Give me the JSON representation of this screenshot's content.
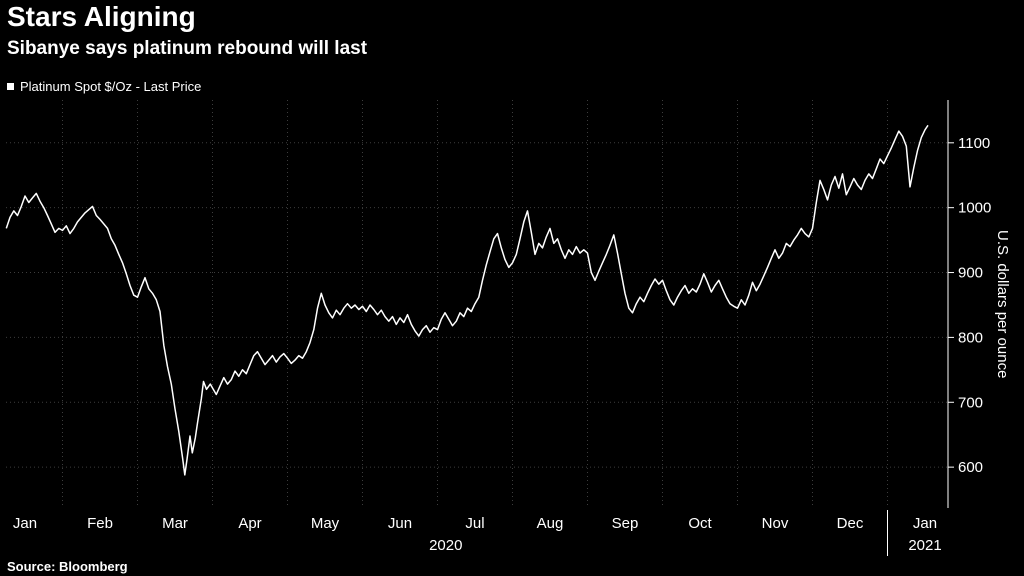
{
  "header": {
    "title": "Stars Aligning",
    "subtitle": "Sibanye says platinum rebound will last"
  },
  "legend": {
    "marker": "white-square",
    "label": "Platinum Spot  $/Oz - Last Price"
  },
  "source": "Source: Bloomberg",
  "colors": {
    "background": "#000000",
    "line": "#ffffff",
    "grid": "#3d3d3d",
    "text": "#ffffff"
  },
  "chart_data": {
    "type": "line",
    "title": "Stars Aligning",
    "subtitle": "Sibanye says platinum rebound will last",
    "ylabel": "U.S. dollars per ounce",
    "ylim": [
      537,
      1166
    ],
    "yticks": [
      600,
      700,
      800,
      900,
      1000,
      1100
    ],
    "grid": "dotted",
    "legend_position": "top-left",
    "x_axis": {
      "unit": "months since 2020-01-01",
      "months": [
        "Jan",
        "Feb",
        "Mar",
        "Apr",
        "May",
        "Jun",
        "Jul",
        "Aug",
        "Sep",
        "Oct",
        "Nov",
        "Dec",
        "Jan"
      ],
      "year_labels": [
        {
          "text": "2020",
          "month": 6.11
        },
        {
          "text": "2021",
          "month": 12.5
        }
      ]
    },
    "series": [
      {
        "name": "Platinum Spot $/Oz - Last Price",
        "points": [
          [
            0.25,
            968
          ],
          [
            0.3,
            985
          ],
          [
            0.35,
            995
          ],
          [
            0.4,
            988
          ],
          [
            0.45,
            1002
          ],
          [
            0.5,
            1018
          ],
          [
            0.55,
            1008
          ],
          [
            0.6,
            1015
          ],
          [
            0.65,
            1022
          ],
          [
            0.7,
            1010
          ],
          [
            0.75,
            1000
          ],
          [
            0.8,
            988
          ],
          [
            0.85,
            975
          ],
          [
            0.9,
            962
          ],
          [
            0.95,
            968
          ],
          [
            1.0,
            965
          ],
          [
            1.05,
            972
          ],
          [
            1.1,
            960
          ],
          [
            1.15,
            968
          ],
          [
            1.2,
            978
          ],
          [
            1.3,
            992
          ],
          [
            1.4,
            1002
          ],
          [
            1.45,
            988
          ],
          [
            1.5,
            982
          ],
          [
            1.6,
            968
          ],
          [
            1.65,
            952
          ],
          [
            1.7,
            942
          ],
          [
            1.75,
            928
          ],
          [
            1.8,
            915
          ],
          [
            1.85,
            898
          ],
          [
            1.9,
            880
          ],
          [
            1.95,
            865
          ],
          [
            2.0,
            862
          ],
          [
            2.05,
            878
          ],
          [
            2.1,
            892
          ],
          [
            2.15,
            875
          ],
          [
            2.2,
            868
          ],
          [
            2.25,
            858
          ],
          [
            2.3,
            840
          ],
          [
            2.35,
            788
          ],
          [
            2.4,
            755
          ],
          [
            2.45,
            728
          ],
          [
            2.5,
            690
          ],
          [
            2.55,
            655
          ],
          [
            2.6,
            615
          ],
          [
            2.63,
            588
          ],
          [
            2.66,
            612
          ],
          [
            2.7,
            648
          ],
          [
            2.73,
            622
          ],
          [
            2.77,
            645
          ],
          [
            2.8,
            668
          ],
          [
            2.85,
            705
          ],
          [
            2.88,
            732
          ],
          [
            2.92,
            720
          ],
          [
            2.97,
            728
          ],
          [
            3.0,
            722
          ],
          [
            3.05,
            712
          ],
          [
            3.1,
            725
          ],
          [
            3.15,
            738
          ],
          [
            3.2,
            728
          ],
          [
            3.25,
            735
          ],
          [
            3.3,
            748
          ],
          [
            3.35,
            740
          ],
          [
            3.4,
            750
          ],
          [
            3.45,
            744
          ],
          [
            3.5,
            758
          ],
          [
            3.55,
            772
          ],
          [
            3.6,
            778
          ],
          [
            3.65,
            768
          ],
          [
            3.7,
            758
          ],
          [
            3.75,
            765
          ],
          [
            3.8,
            772
          ],
          [
            3.85,
            762
          ],
          [
            3.9,
            770
          ],
          [
            3.95,
            775
          ],
          [
            4.0,
            768
          ],
          [
            4.05,
            760
          ],
          [
            4.1,
            765
          ],
          [
            4.15,
            772
          ],
          [
            4.2,
            768
          ],
          [
            4.25,
            778
          ],
          [
            4.3,
            792
          ],
          [
            4.35,
            812
          ],
          [
            4.4,
            845
          ],
          [
            4.45,
            868
          ],
          [
            4.5,
            850
          ],
          [
            4.55,
            838
          ],
          [
            4.6,
            830
          ],
          [
            4.65,
            842
          ],
          [
            4.7,
            835
          ],
          [
            4.75,
            845
          ],
          [
            4.8,
            852
          ],
          [
            4.85,
            845
          ],
          [
            4.9,
            850
          ],
          [
            4.95,
            843
          ],
          [
            5.0,
            848
          ],
          [
            5.05,
            840
          ],
          [
            5.1,
            850
          ],
          [
            5.15,
            843
          ],
          [
            5.2,
            835
          ],
          [
            5.25,
            842
          ],
          [
            5.3,
            832
          ],
          [
            5.35,
            825
          ],
          [
            5.4,
            832
          ],
          [
            5.45,
            820
          ],
          [
            5.5,
            830
          ],
          [
            5.55,
            823
          ],
          [
            5.6,
            835
          ],
          [
            5.65,
            820
          ],
          [
            5.7,
            810
          ],
          [
            5.75,
            802
          ],
          [
            5.8,
            812
          ],
          [
            5.85,
            818
          ],
          [
            5.9,
            808
          ],
          [
            5.95,
            815
          ],
          [
            6.0,
            812
          ],
          [
            6.05,
            828
          ],
          [
            6.1,
            838
          ],
          [
            6.15,
            828
          ],
          [
            6.2,
            818
          ],
          [
            6.25,
            825
          ],
          [
            6.3,
            838
          ],
          [
            6.35,
            832
          ],
          [
            6.4,
            845
          ],
          [
            6.45,
            840
          ],
          [
            6.5,
            852
          ],
          [
            6.55,
            862
          ],
          [
            6.6,
            888
          ],
          [
            6.65,
            912
          ],
          [
            6.7,
            932
          ],
          [
            6.75,
            952
          ],
          [
            6.8,
            960
          ],
          [
            6.85,
            938
          ],
          [
            6.9,
            920
          ],
          [
            6.95,
            908
          ],
          [
            7.0,
            915
          ],
          [
            7.05,
            928
          ],
          [
            7.1,
            952
          ],
          [
            7.15,
            978
          ],
          [
            7.2,
            995
          ],
          [
            7.25,
            962
          ],
          [
            7.3,
            928
          ],
          [
            7.35,
            945
          ],
          [
            7.4,
            938
          ],
          [
            7.45,
            955
          ],
          [
            7.5,
            968
          ],
          [
            7.55,
            945
          ],
          [
            7.6,
            952
          ],
          [
            7.65,
            935
          ],
          [
            7.7,
            922
          ],
          [
            7.75,
            935
          ],
          [
            7.8,
            928
          ],
          [
            7.85,
            940
          ],
          [
            7.9,
            930
          ],
          [
            7.95,
            935
          ],
          [
            8.0,
            930
          ],
          [
            8.05,
            900
          ],
          [
            8.1,
            888
          ],
          [
            8.15,
            902
          ],
          [
            8.2,
            915
          ],
          [
            8.25,
            928
          ],
          [
            8.3,
            942
          ],
          [
            8.35,
            958
          ],
          [
            8.4,
            930
          ],
          [
            8.45,
            898
          ],
          [
            8.5,
            868
          ],
          [
            8.55,
            845
          ],
          [
            8.6,
            838
          ],
          [
            8.65,
            852
          ],
          [
            8.7,
            862
          ],
          [
            8.75,
            855
          ],
          [
            8.8,
            868
          ],
          [
            8.85,
            880
          ],
          [
            8.9,
            890
          ],
          [
            8.95,
            882
          ],
          [
            9.0,
            888
          ],
          [
            9.05,
            872
          ],
          [
            9.1,
            858
          ],
          [
            9.15,
            850
          ],
          [
            9.2,
            862
          ],
          [
            9.25,
            872
          ],
          [
            9.3,
            880
          ],
          [
            9.35,
            868
          ],
          [
            9.4,
            875
          ],
          [
            9.45,
            870
          ],
          [
            9.5,
            882
          ],
          [
            9.55,
            898
          ],
          [
            9.6,
            885
          ],
          [
            9.65,
            870
          ],
          [
            9.7,
            880
          ],
          [
            9.75,
            888
          ],
          [
            9.8,
            875
          ],
          [
            9.85,
            862
          ],
          [
            9.9,
            852
          ],
          [
            9.95,
            848
          ],
          [
            10.0,
            845
          ],
          [
            10.05,
            858
          ],
          [
            10.1,
            850
          ],
          [
            10.15,
            865
          ],
          [
            10.2,
            885
          ],
          [
            10.25,
            872
          ],
          [
            10.3,
            882
          ],
          [
            10.35,
            895
          ],
          [
            10.4,
            908
          ],
          [
            10.45,
            922
          ],
          [
            10.5,
            935
          ],
          [
            10.55,
            922
          ],
          [
            10.6,
            930
          ],
          [
            10.65,
            945
          ],
          [
            10.7,
            940
          ],
          [
            10.75,
            950
          ],
          [
            10.8,
            958
          ],
          [
            10.85,
            968
          ],
          [
            10.9,
            960
          ],
          [
            10.95,
            955
          ],
          [
            11.0,
            968
          ],
          [
            11.05,
            1008
          ],
          [
            11.1,
            1042
          ],
          [
            11.15,
            1028
          ],
          [
            11.2,
            1012
          ],
          [
            11.25,
            1035
          ],
          [
            11.3,
            1048
          ],
          [
            11.35,
            1030
          ],
          [
            11.4,
            1052
          ],
          [
            11.45,
            1020
          ],
          [
            11.5,
            1032
          ],
          [
            11.55,
            1045
          ],
          [
            11.6,
            1035
          ],
          [
            11.65,
            1028
          ],
          [
            11.7,
            1042
          ],
          [
            11.75,
            1052
          ],
          [
            11.8,
            1045
          ],
          [
            11.85,
            1060
          ],
          [
            11.9,
            1075
          ],
          [
            11.95,
            1068
          ],
          [
            12.0,
            1080
          ],
          [
            12.05,
            1092
          ],
          [
            12.1,
            1105
          ],
          [
            12.15,
            1118
          ],
          [
            12.2,
            1110
          ],
          [
            12.25,
            1095
          ],
          [
            12.3,
            1032
          ],
          [
            12.35,
            1062
          ],
          [
            12.4,
            1088
          ],
          [
            12.45,
            1108
          ],
          [
            12.5,
            1120
          ],
          [
            12.54,
            1127
          ]
        ]
      }
    ]
  }
}
